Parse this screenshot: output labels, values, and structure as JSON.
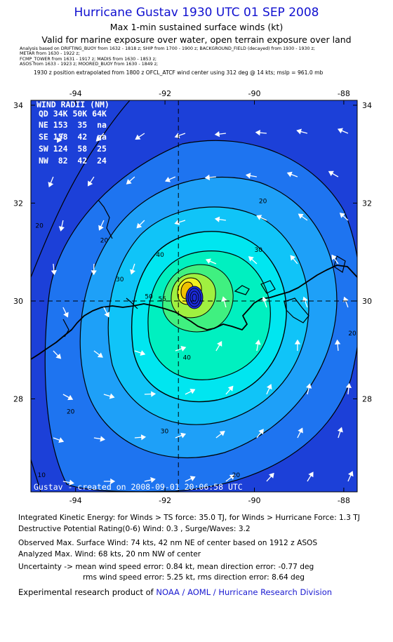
{
  "header": {
    "title": "Hurricane Gustav 1930 UTC 01 SEP 2008",
    "subtitle": "Max 1-min sustained surface winds (kt)",
    "valid": "Valid for marine exposure over water, open terrain exposure over land",
    "analysis_lines": [
      "Analysis based on DRIFTING_BUOY from 1632 - 1818 z;  SHIP from 1700 - 1900 z;  BACKGROUND_FIELD (decayed) from 1930 - 1930 z;",
      "METAR from 1630 - 1922 z;",
      "FCMP_TOWER from 1631 - 1917 z;  MADIS from 1630 - 1853 z;",
      "ASOS from 1633 - 1923 z;  MOORED_BUOY from 1630 - 1849 z;"
    ],
    "extrapolation": "1930 z position extrapolated from 1800 z OFCL_ATCF wind center using 312 deg @ 14 kts; mslp = 961.0 mb"
  },
  "map": {
    "lon_ticks": [
      "-94",
      "-92",
      "-90",
      "-88"
    ],
    "lat_ticks": [
      "34",
      "32",
      "30",
      "28"
    ],
    "center_lon": -91.7,
    "center_lat": 30.0,
    "lon_range": [
      -95.0,
      -87.7
    ],
    "lat_range": [
      26.1,
      34.1
    ],
    "contour_labels": [
      {
        "text": "20",
        "lon": -93.45,
        "lat": 31.2
      },
      {
        "text": "20",
        "lon": -89.9,
        "lat": 32.0
      },
      {
        "text": "20",
        "lon": -87.9,
        "lat": 29.3
      },
      {
        "text": "20",
        "lon": -94.2,
        "lat": 27.7
      },
      {
        "text": "20",
        "lon": -90.5,
        "lat": 26.4
      },
      {
        "text": "20",
        "lon": -94.9,
        "lat": 31.5
      },
      {
        "text": "30",
        "lon": -93.1,
        "lat": 30.4
      },
      {
        "text": "30",
        "lon": -90.0,
        "lat": 31.0
      },
      {
        "text": "30",
        "lon": -92.1,
        "lat": 27.3
      },
      {
        "text": "40",
        "lon": -92.2,
        "lat": 30.9
      },
      {
        "text": "40",
        "lon": -91.6,
        "lat": 28.8
      },
      {
        "text": "50",
        "lon": -92.45,
        "lat": 30.05
      },
      {
        "text": "55",
        "lon": -92.15,
        "lat": 30.0
      },
      {
        "text": "10",
        "lon": -94.85,
        "lat": 26.4
      }
    ],
    "wind_radii": {
      "title": "WIND RADII (NM)",
      "header": "QD 34K 50K 64K",
      "rows": [
        {
          "quad": "NE",
          "r34": "153",
          "r50": "35",
          "r64": "na"
        },
        {
          "quad": "SE",
          "r34": "158",
          "r50": "42",
          "r64": "na"
        },
        {
          "quad": "SW",
          "r34": "124",
          "r50": "58",
          "r64": "25"
        },
        {
          "quad": "NW",
          "r34": "82",
          "r50": "42",
          "r64": "24"
        }
      ]
    },
    "credit": "Gustav - created on 2008-09-01 20:06:58 UTC",
    "colors": {
      "level_10": "#1c40d8",
      "level_20": "#1e74f0",
      "level_25": "#1ea0f8",
      "level_30": "#10c4f8",
      "level_35": "#00e6f0",
      "level_40": "#00f0c0",
      "level_45": "#40f080",
      "level_50": "#a0f040",
      "level_55": "#f0f020",
      "level_60": "#f0c000"
    }
  },
  "stats": {
    "ike": "Integrated Kinetic Energy:  for Winds > TS force: 35.0 TJ,  for Winds > Hurricane Force: 1.3 TJ",
    "destructive": "Destructive Potential Rating(0-6)   Wind: 0.3 , Surge/Waves: 3.2",
    "observed": "Observed Max. Surface Wind: 74 kts, 42 nm NE of center based on 1912 z ASOS",
    "analyzed": "Analyzed Max. Wind: 68 kts, 20 nm NW of center",
    "uncertainty_mean": "Uncertainty -> mean wind speed error: 0.84 kt,   mean direction error:  -0.77 deg",
    "uncertainty_rms": "rms wind speed error: 5.25 kt,   rms direction error: 8.64 deg"
  },
  "footer": {
    "prefix": "Experimental research product of ",
    "link": "NOAA / AOML / Hurricane Research Division"
  }
}
